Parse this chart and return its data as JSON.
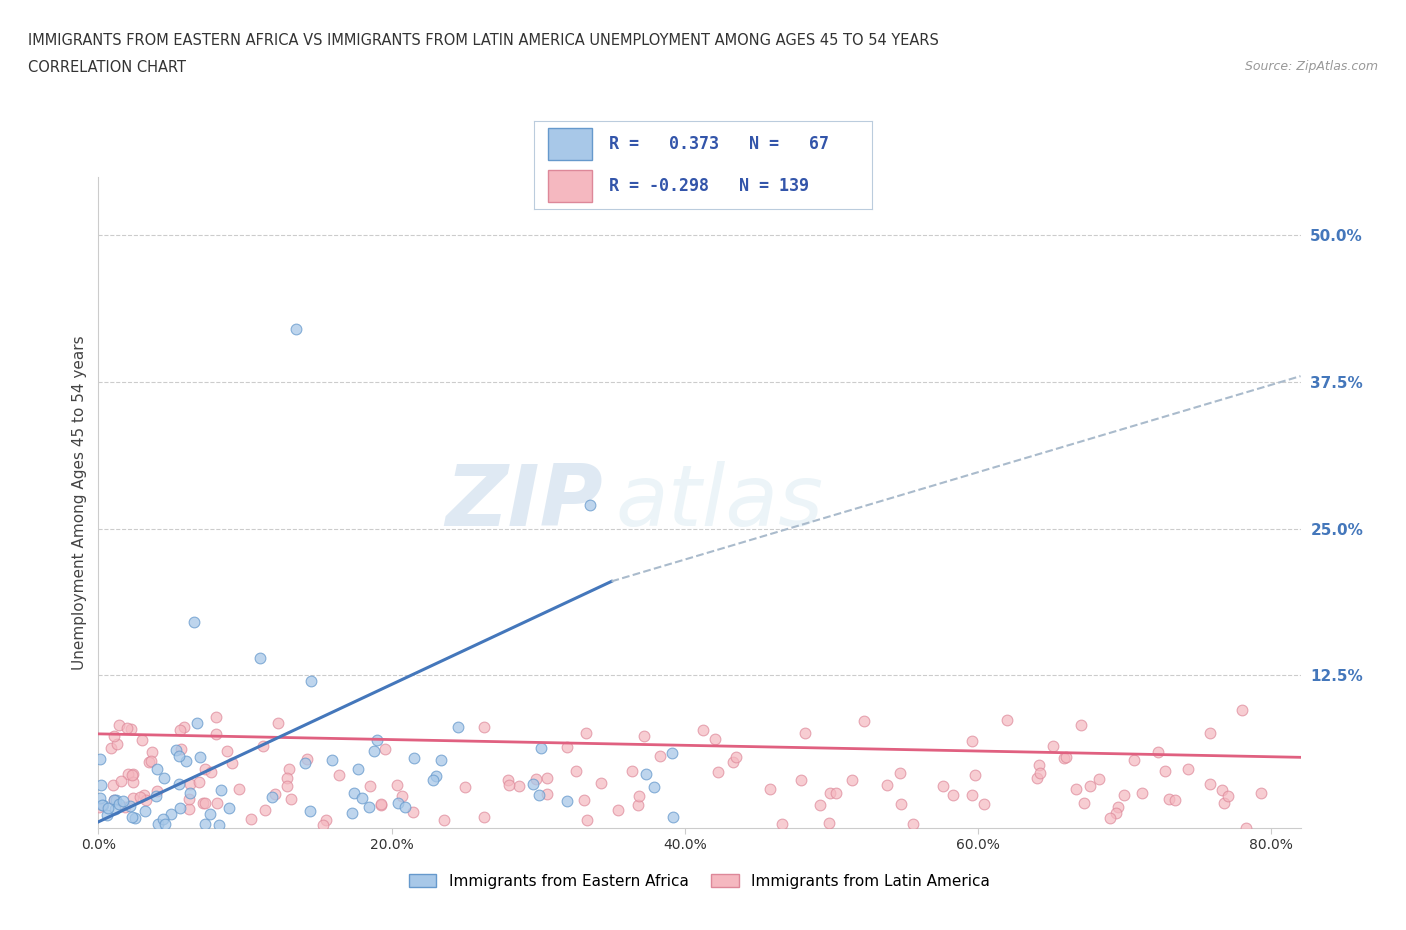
{
  "title_line1": "IMMIGRANTS FROM EASTERN AFRICA VS IMMIGRANTS FROM LATIN AMERICA UNEMPLOYMENT AMONG AGES 45 TO 54 YEARS",
  "title_line2": "CORRELATION CHART",
  "source_text": "Source: ZipAtlas.com",
  "ylabel": "Unemployment Among Ages 45 to 54 years",
  "xlim": [
    0.0,
    0.82
  ],
  "ylim": [
    -0.005,
    0.55
  ],
  "ytick_vals": [
    0.125,
    0.25,
    0.375,
    0.5
  ],
  "ytick_labels": [
    "12.5%",
    "25.0%",
    "37.5%",
    "50.0%"
  ],
  "xtick_vals": [
    0.0,
    0.2,
    0.4,
    0.6,
    0.8
  ],
  "xtick_labels": [
    "0.0%",
    "20.0%",
    "40.0%",
    "60.0%",
    "80.0%"
  ],
  "color_africa": "#a8c8e8",
  "color_africa_edge": "#6699cc",
  "color_africa_line": "#4477bb",
  "color_latam": "#f5b8c0",
  "color_latam_edge": "#dd8899",
  "color_latam_line": "#e06080",
  "color_dashed": "#aabbcc",
  "R_africa": 0.373,
  "N_africa": 67,
  "R_latam": -0.298,
  "N_latam": 139,
  "legend_label_africa": "Immigrants from Eastern Africa",
  "legend_label_latam": "Immigrants from Latin America",
  "watermark_top": "ZIP",
  "watermark_bot": "atlas",
  "background_color": "#ffffff",
  "tick_color": "#4477bb",
  "africa_line_x0": 0.0,
  "africa_line_y0": 0.0,
  "africa_line_x1": 0.35,
  "africa_line_y1": 0.205,
  "dashed_line_x0": 0.35,
  "dashed_line_y0": 0.205,
  "dashed_line_x1": 0.82,
  "dashed_line_y1": 0.38,
  "latam_line_x0": 0.0,
  "latam_line_y0": 0.075,
  "latam_line_x1": 0.82,
  "latam_line_y1": 0.055
}
